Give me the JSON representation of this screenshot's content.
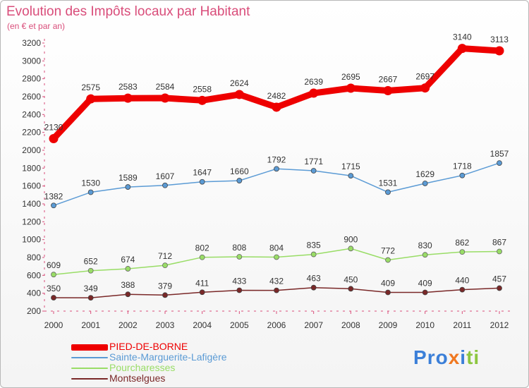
{
  "chart_data": {
    "type": "line",
    "title": "Evolution des Impôts locaux par Habitant",
    "subtitle": "(en € et par an)",
    "xlabel": "",
    "ylabel": "",
    "ylim": [
      200,
      3200
    ],
    "yticks": [
      200,
      400,
      600,
      800,
      1000,
      1200,
      1400,
      1600,
      1800,
      2000,
      2200,
      2400,
      2600,
      2800,
      3000,
      3200
    ],
    "categories": [
      "2000",
      "2001",
      "2002",
      "2003",
      "2004",
      "2005",
      "2006",
      "2007",
      "2008",
      "2009",
      "2010",
      "2011",
      "2012"
    ],
    "series": [
      {
        "name": "PIED-DE-BORNE",
        "color": "#ee0000",
        "values": [
          2130,
          2575,
          2583,
          2584,
          2558,
          2624,
          2482,
          2639,
          2695,
          2667,
          2697,
          3140,
          3113
        ]
      },
      {
        "name": "Sainte-Marguerite-Lafigère",
        "color": "#5b9bd5",
        "values": [
          1382,
          1530,
          1589,
          1607,
          1647,
          1660,
          1792,
          1771,
          1715,
          1531,
          1629,
          1718,
          1857
        ]
      },
      {
        "name": "Pourcharesses",
        "color": "#99dd66",
        "values": [
          609,
          652,
          674,
          712,
          802,
          808,
          804,
          835,
          900,
          772,
          830,
          862,
          867
        ]
      },
      {
        "name": "Montselgues",
        "color": "#7a2828",
        "values": [
          350,
          349,
          388,
          379,
          411,
          433,
          432,
          463,
          450,
          409,
          409,
          440,
          457
        ]
      }
    ],
    "grid": false,
    "legend": "bottom-left"
  },
  "logo": {
    "text": "Proxiti",
    "letters": [
      "P",
      "r",
      "o",
      "x",
      "i",
      "t",
      "i"
    ],
    "colors": [
      "#3b7fd8",
      "#3b7fd8",
      "#3b7fd8",
      "#f07820",
      "#3b7fd8",
      "#8cc63f",
      "#8cc63f"
    ]
  }
}
